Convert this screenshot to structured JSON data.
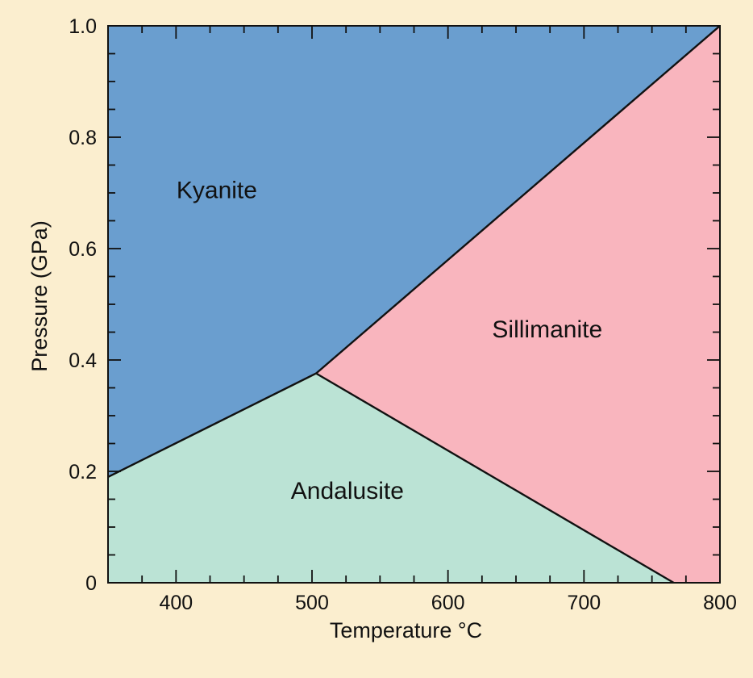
{
  "chart_data": {
    "type": "phase-diagram",
    "title": "",
    "xlabel": "Temperature °C",
    "ylabel": "Pressure (GPa)",
    "xlim": [
      350,
      800
    ],
    "ylim": [
      0,
      1.0
    ],
    "x_ticks": [
      {
        "value": 400,
        "label": "400"
      },
      {
        "value": 500,
        "label": "500"
      },
      {
        "value": 600,
        "label": "600"
      },
      {
        "value": 700,
        "label": "700"
      },
      {
        "value": 800,
        "label": "800"
      }
    ],
    "y_ticks": [
      {
        "value": 0,
        "label": "0"
      },
      {
        "value": 0.2,
        "label": "0.2"
      },
      {
        "value": 0.4,
        "label": "0.4"
      },
      {
        "value": 0.6,
        "label": "0.6"
      },
      {
        "value": 0.8,
        "label": "0.8"
      },
      {
        "value": 1.0,
        "label": "1.0"
      }
    ],
    "x_minor_step": 25,
    "y_minor_step": 0.05,
    "triple_point": {
      "x": 503,
      "y": 0.376
    },
    "boundaries": [
      {
        "name": "kyanite-andalusite",
        "points": [
          [
            350,
            0.19
          ],
          [
            503,
            0.376
          ]
        ]
      },
      {
        "name": "kyanite-sillimanite",
        "points": [
          [
            503,
            0.376
          ],
          [
            800,
            1.0
          ]
        ]
      },
      {
        "name": "andalusite-sillimanite",
        "points": [
          [
            503,
            0.376
          ],
          [
            766,
            0
          ]
        ]
      }
    ],
    "regions": [
      {
        "name": "Kyanite",
        "color": "#6a9ecf",
        "polygon": [
          [
            350,
            1.0
          ],
          [
            800,
            1.0
          ],
          [
            503,
            0.376
          ],
          [
            350,
            0.19
          ]
        ],
        "label_at": [
          430,
          0.705
        ]
      },
      {
        "name": "Sillimanite",
        "color": "#f9b5be",
        "polygon": [
          [
            503,
            0.376
          ],
          [
            800,
            1.0
          ],
          [
            800,
            0
          ],
          [
            766,
            0
          ]
        ],
        "label_at": [
          673,
          0.455
        ]
      },
      {
        "name": "Andalusite",
        "color": "#bbe3d5",
        "polygon": [
          [
            350,
            0.19
          ],
          [
            503,
            0.376
          ],
          [
            766,
            0
          ],
          [
            350,
            0
          ]
        ],
        "label_at": [
          526,
          0.165
        ]
      }
    ]
  }
}
